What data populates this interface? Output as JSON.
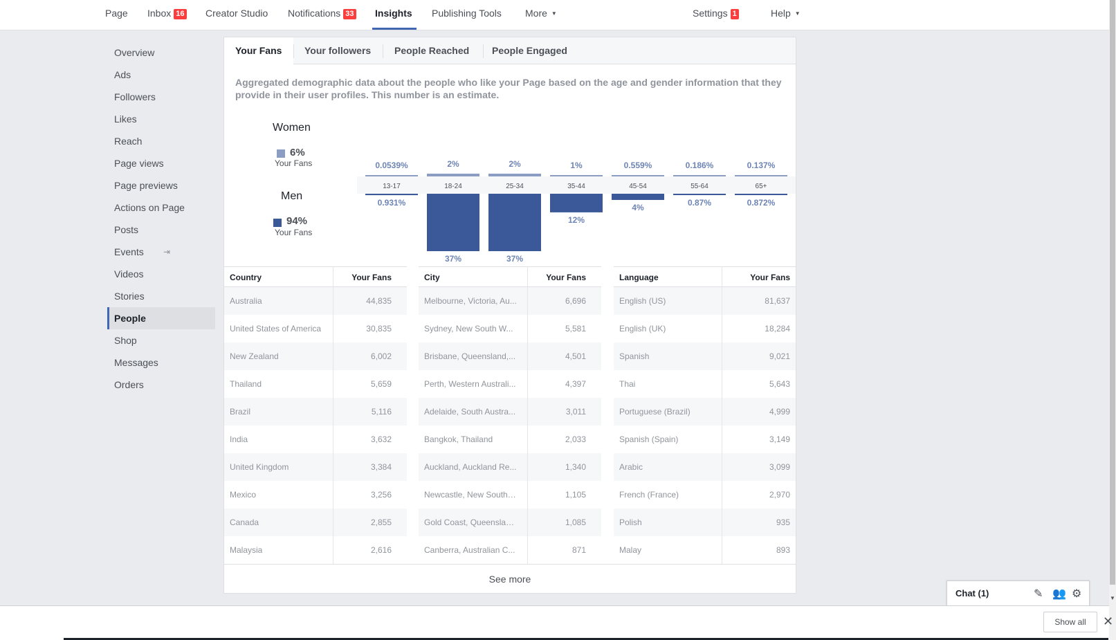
{
  "topnav": {
    "page": "Page",
    "inbox": "Inbox",
    "inbox_badge": "16",
    "creator_studio": "Creator Studio",
    "notifications": "Notifications",
    "notifications_badge": "33",
    "insights": "Insights",
    "publishing_tools": "Publishing Tools",
    "more": "More",
    "settings": "Settings",
    "settings_badge": "1",
    "help": "Help"
  },
  "sidebar": {
    "items": [
      {
        "label": "Overview"
      },
      {
        "label": "Ads"
      },
      {
        "label": "Followers"
      },
      {
        "label": "Likes"
      },
      {
        "label": "Reach"
      },
      {
        "label": "Page views"
      },
      {
        "label": "Page previews"
      },
      {
        "label": "Actions on Page"
      },
      {
        "label": "Posts"
      },
      {
        "label": "Events"
      },
      {
        "label": "Videos"
      },
      {
        "label": "Stories"
      },
      {
        "label": "People"
      },
      {
        "label": "Shop"
      },
      {
        "label": "Messages"
      },
      {
        "label": "Orders"
      }
    ],
    "active": "People"
  },
  "tabs": [
    "Your Fans",
    "Your followers",
    "People Reached",
    "People Engaged"
  ],
  "description": "Aggregated demographic data about the people who like your Page based on the age and gender information that they provide in their user profiles. This number is an estimate.",
  "legend": {
    "women_title": "Women",
    "women_pct": "6%",
    "women_sub": "Your Fans",
    "men_title": "Men",
    "men_pct": "94%",
    "men_sub": "Your Fans"
  },
  "colors": {
    "women": "#8b9dc3",
    "men": "#3b5998",
    "accent": "#4267b2",
    "badge": "#fa3e3e"
  },
  "chart_data": {
    "type": "bar",
    "categories": [
      "13-17",
      "18-24",
      "25-34",
      "35-44",
      "45-54",
      "55-64",
      "65+"
    ],
    "series": [
      {
        "name": "Women",
        "values": [
          0.0539,
          2,
          2,
          1,
          0.559,
          0.186,
          0.137
        ],
        "labels": [
          "0.0539%",
          "2%",
          "2%",
          "1%",
          "0.559%",
          "0.186%",
          "0.137%"
        ]
      },
      {
        "name": "Men",
        "values": [
          0.931,
          37,
          37,
          12,
          4,
          0.87,
          0.872
        ],
        "labels": [
          "0.931%",
          "37%",
          "37%",
          "12%",
          "4%",
          "0.87%",
          "0.872%"
        ]
      }
    ]
  },
  "country_table": {
    "headers": [
      "Country",
      "Your Fans"
    ],
    "rows": [
      [
        "Australia",
        "44,835"
      ],
      [
        "United States of America",
        "30,835"
      ],
      [
        "New Zealand",
        "6,002"
      ],
      [
        "Thailand",
        "5,659"
      ],
      [
        "Brazil",
        "5,116"
      ],
      [
        "India",
        "3,632"
      ],
      [
        "United Kingdom",
        "3,384"
      ],
      [
        "Mexico",
        "3,256"
      ],
      [
        "Canada",
        "2,855"
      ],
      [
        "Malaysia",
        "2,616"
      ]
    ]
  },
  "city_table": {
    "headers": [
      "City",
      "Your Fans"
    ],
    "rows": [
      [
        "Melbourne, Victoria, Au...",
        "6,696"
      ],
      [
        "Sydney, New South W...",
        "5,581"
      ],
      [
        "Brisbane, Queensland,...",
        "4,501"
      ],
      [
        "Perth, Western Australi...",
        "4,397"
      ],
      [
        "Adelaide, South Austra...",
        "3,011"
      ],
      [
        "Bangkok, Thailand",
        "2,033"
      ],
      [
        "Auckland, Auckland Re...",
        "1,340"
      ],
      [
        "Newcastle, New South ...",
        "1,105"
      ],
      [
        "Gold Coast, Queenslan...",
        "1,085"
      ],
      [
        "Canberra, Australian C...",
        "871"
      ]
    ]
  },
  "language_table": {
    "headers": [
      "Language",
      "Your Fans"
    ],
    "rows": [
      [
        "English (US)",
        "81,637"
      ],
      [
        "English (UK)",
        "18,284"
      ],
      [
        "Spanish",
        "9,021"
      ],
      [
        "Thai",
        "5,643"
      ],
      [
        "Portuguese (Brazil)",
        "4,999"
      ],
      [
        "Spanish (Spain)",
        "3,149"
      ],
      [
        "Arabic",
        "3,099"
      ],
      [
        "French (France)",
        "2,970"
      ],
      [
        "Polish",
        "935"
      ],
      [
        "Malay",
        "893"
      ]
    ]
  },
  "see_more": "See more",
  "chat": {
    "label": "Chat (1)",
    "icons": [
      "compose-icon",
      "people-icon",
      "gear-icon"
    ]
  },
  "bottom": {
    "show_all": "Show all"
  }
}
